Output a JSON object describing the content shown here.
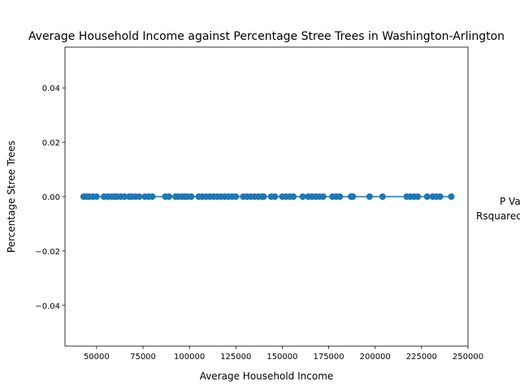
{
  "chart_data": {
    "type": "scatter",
    "title": "Average Household Income against Percentage Stree Trees in Washington-Arlington",
    "xlabel": "Average Household Income",
    "ylabel": "Percentage Stree Trees",
    "xlim": [
      33000,
      250000
    ],
    "ylim": [
      -0.055,
      0.055
    ],
    "x_ticks": [
      50000,
      75000,
      100000,
      125000,
      150000,
      175000,
      200000,
      225000,
      250000
    ],
    "x_tick_labels": [
      "50000",
      "75000",
      "100000",
      "125000",
      "150000",
      "175000",
      "200000",
      "225000",
      "250000"
    ],
    "y_ticks": [
      0.04,
      0.02,
      0.0,
      -0.02,
      -0.04
    ],
    "y_tick_labels": [
      "0.04",
      "0.02",
      "0.00",
      "−0.02",
      "−0.04"
    ],
    "grid": false,
    "color": "#1f77b4",
    "regression_line": {
      "x": [
        43000,
        241000
      ],
      "y": [
        0,
        0
      ]
    },
    "points": {
      "x": [
        43000,
        44500,
        46000,
        48000,
        50000,
        54000,
        56000,
        58000,
        59500,
        61000,
        63000,
        65000,
        67500,
        69000,
        71000,
        73000,
        76000,
        78000,
        80000,
        87000,
        89000,
        92500,
        94000,
        96000,
        97500,
        99000,
        101000,
        105000,
        107000,
        109000,
        111000,
        113000,
        115000,
        117000,
        119000,
        121000,
        123000,
        125000,
        129000,
        131000,
        133000,
        135000,
        137000,
        139000,
        140000,
        144000,
        146000,
        150000,
        152000,
        154000,
        156000,
        161000,
        164000,
        166000,
        168000,
        170000,
        172000,
        177000,
        179000,
        181000,
        187000,
        188000,
        197000,
        204000,
        217000,
        219000,
        221000,
        223000,
        228000,
        231000,
        233000,
        235000,
        241000
      ],
      "y": [
        0,
        0,
        0,
        0,
        0,
        0,
        0,
        0,
        0,
        0,
        0,
        0,
        0,
        0,
        0,
        0,
        0,
        0,
        0,
        0,
        0,
        0,
        0,
        0,
        0,
        0,
        0,
        0,
        0,
        0,
        0,
        0,
        0,
        0,
        0,
        0,
        0,
        0,
        0,
        0,
        0,
        0,
        0,
        0,
        0,
        0,
        0,
        0,
        0,
        0,
        0,
        0,
        0,
        0,
        0,
        0,
        0,
        0,
        0,
        0,
        0,
        0,
        0,
        0,
        0,
        0,
        0,
        0,
        0,
        0,
        0,
        0,
        0
      ]
    },
    "annotations": [
      "P Value",
      "Rsquared"
    ]
  }
}
